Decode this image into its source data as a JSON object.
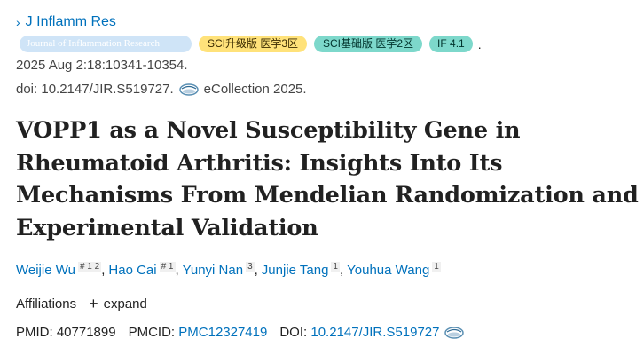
{
  "journal": {
    "name": "J Inflamm Res",
    "badges": {
      "journal_full": "Journal of Inflammation Research",
      "sci_upgrade": "SCI升级版 医学3区",
      "sci_basic": "SCI基础版 医学2区",
      "impact_factor": "IF 4.1",
      "trailing": "."
    }
  },
  "citation": {
    "date_pages": "2025 Aug 2:18:10341-10354.",
    "doi": "doi: 10.2147/JIR.S519727.",
    "ecollection": "eCollection 2025."
  },
  "article": {
    "title": "VOPP1 as a Novel Susceptibility Gene in Rheumatoid Arthritis: Insights Into Its Mechanisms From Mendelian Randomization and Experimental Validation"
  },
  "authors": [
    {
      "name": "Weijie Wu",
      "sup": "# 1 2"
    },
    {
      "name": "Hao Cai",
      "sup": "# 1"
    },
    {
      "name": "Yunyi Nan",
      "sup": "3"
    },
    {
      "name": "Junjie Tang",
      "sup": "1"
    },
    {
      "name": "Youhua Wang",
      "sup": "1"
    }
  ],
  "affiliations": {
    "label": "Affiliations",
    "expand": "expand"
  },
  "identifiers": {
    "pmid_label": "PMID:",
    "pmid": "40771899",
    "pmcid_label": "PMCID:",
    "pmcid": "PMC12327419",
    "doi_label": "DOI:",
    "doi": "10.2147/JIR.S519727"
  },
  "icons": {
    "journal_chevron": "chevron-right-icon",
    "fulltext": "full-text-link-icon",
    "expand": "plus-icon"
  },
  "colors": {
    "link": "#0071bc",
    "badge_journal": "#cfe4f7",
    "badge_sci_upgrade": "#ffe27a",
    "badge_sci_basic": "#7dd8cb"
  }
}
